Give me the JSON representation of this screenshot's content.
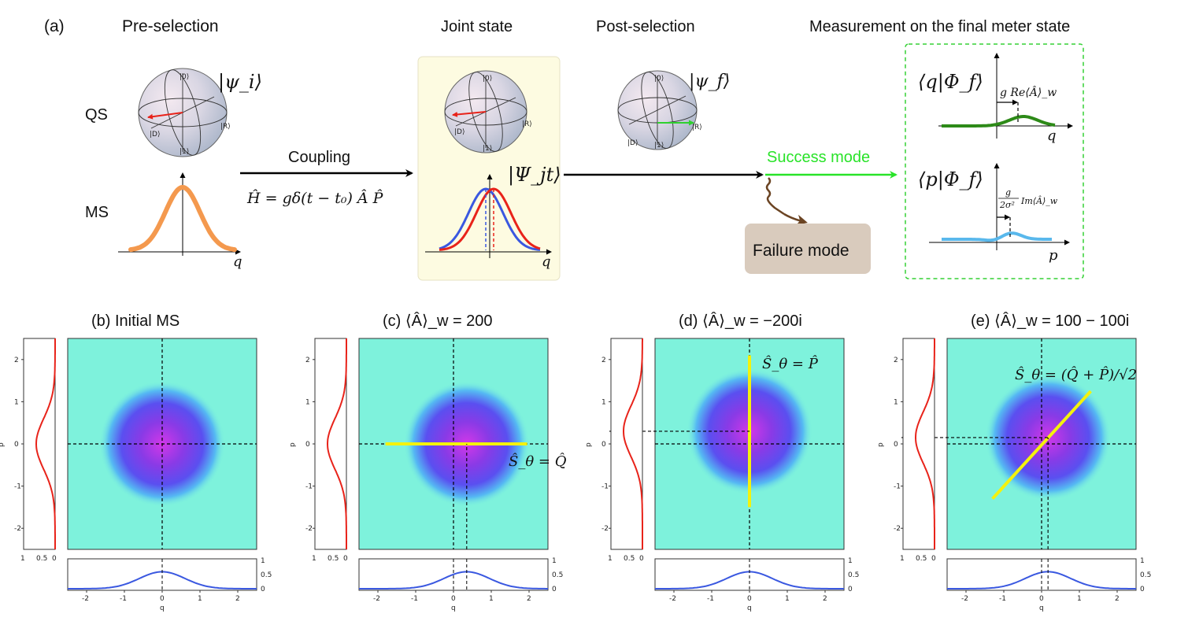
{
  "top": {
    "panel_label": "(a)",
    "headers": {
      "preselection": "Pre-selection",
      "joint": "Joint state",
      "postselection": "Post-selection",
      "measurement": "Measurement on the final meter state"
    },
    "row_labels": {
      "qs": "QS",
      "ms": "MS"
    },
    "psi_i": "|ψ_i⟩",
    "psi_f": "|ψ_f⟩",
    "psi_jt": "|Ψ_jt⟩",
    "coupling_label": "Coupling",
    "hamiltonian": "Ĥ = gδ(t − t₀) Â P̂",
    "success": "Success mode",
    "failure": "Failure mode",
    "q_amp": "⟨q|Φ_f⟩",
    "p_amp": "⟨p|Φ_f⟩",
    "q_shift": "g Re⟨Â⟩_w",
    "p_shift_num": "g",
    "p_shift_den": "2σ²",
    "p_shift_rest": "Im⟨Â⟩_w",
    "axis_q": "q",
    "axis_p": "p",
    "bloch_states": {
      "zero": "|0⟩",
      "one": "|1⟩",
      "R": "|R⟩",
      "D": "|D⟩"
    },
    "colors": {
      "ms_gauss": "#f4994e",
      "red": "#e8231a",
      "blue": "#3a58e0",
      "green": "#2fd12f",
      "success": "#29e329",
      "failure_box": "#d9cbbd",
      "joint_bg": "#fdfbe1",
      "arrow_brown": "#6b4423",
      "q_curve": "#2d8a18",
      "p_curve": "#59b8ec"
    }
  },
  "panels": [
    {
      "title": "(b) Initial MS",
      "shift_q": 0,
      "shift_p": 0,
      "line": "none",
      "line_label": ""
    },
    {
      "title": "(c) ⟨Â⟩_w = 200",
      "shift_q": 0.35,
      "shift_p": 0,
      "line": "Q",
      "line_label": "Ŝ_θ = Q̂"
    },
    {
      "title": "(d) ⟨Â⟩_w = −200i",
      "shift_q": 0,
      "shift_p": 0.3,
      "line": "P",
      "line_label": "Ŝ_θ = P̂"
    },
    {
      "title": "(e) ⟨Â⟩_w = 100 − 100i",
      "shift_q": 0.17,
      "shift_p": 0.15,
      "line": "diag",
      "line_label": "Ŝ_θ = (Q̂ + P̂)/√2"
    }
  ],
  "axes": {
    "q_label": "q",
    "p_label": "p",
    "main_ticks": [
      "-2",
      "-1",
      "0",
      "1",
      "2"
    ],
    "marg_y_ticks": [
      "0",
      "0.5",
      "1"
    ],
    "marg_x_ticks": [
      "1",
      "0.5",
      "0"
    ]
  },
  "chart_data": {
    "type": "heatmap",
    "description_fields": "phase-space Gaussian distributions with marginals",
    "q_range": [
      -2.5,
      2.5
    ],
    "p_range": [
      -2.5,
      2.5
    ],
    "sigma": 0.6,
    "marginal_peak": 0.6,
    "marginal_ylim": [
      0,
      1
    ],
    "series": [
      {
        "name": "(b) Initial MS",
        "center_q": 0,
        "center_p": 0
      },
      {
        "name": "(c) ⟨Â⟩_w = 200",
        "center_q": 0.35,
        "center_p": 0
      },
      {
        "name": "(d) ⟨Â⟩_w = −200i",
        "center_q": 0,
        "center_p": 0.3
      },
      {
        "name": "(e) ⟨Â⟩_w = 100 − 100i",
        "center_q": 0.17,
        "center_p": 0.15
      }
    ]
  }
}
